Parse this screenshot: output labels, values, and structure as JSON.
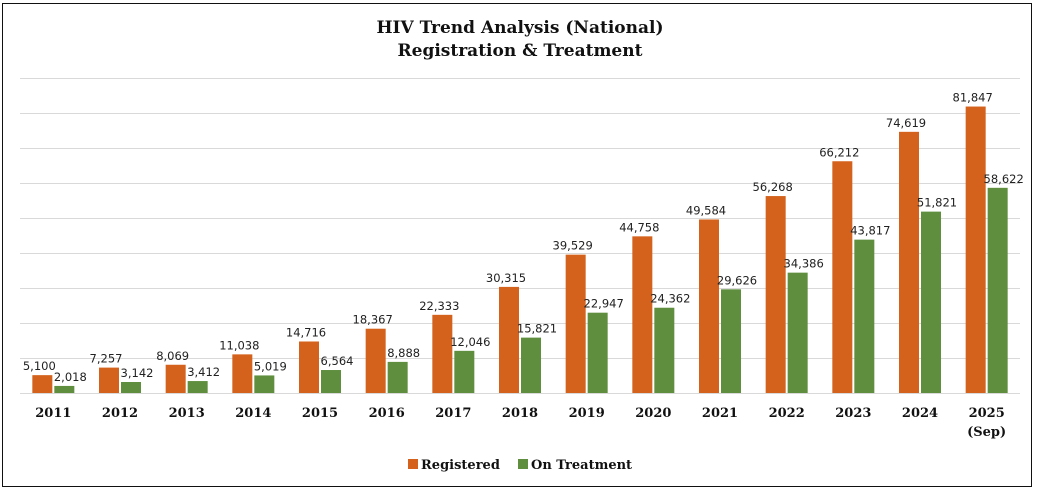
{
  "chart_data": {
    "type": "bar",
    "title": "HIV Trend Analysis (National)",
    "subtitle": "Registration & Treatment",
    "xlabel": "",
    "ylabel": "",
    "ylim": [
      0,
      90000
    ],
    "grid_step": 10000,
    "grid": true,
    "y_axis_labels_shown": false,
    "legend_position": "bottom",
    "categories": [
      "2011",
      "2012",
      "2013",
      "2014",
      "2015",
      "2016",
      "2017",
      "2018",
      "2019",
      "2020",
      "2021",
      "2022",
      "2023",
      "2024",
      "2025"
    ],
    "category_sublabels": [
      "",
      "",
      "",
      "",
      "",
      "",
      "",
      "",
      "",
      "",
      "",
      "",
      "",
      "",
      "(Sep)"
    ],
    "series": [
      {
        "name": "Registered",
        "color": "#D4621C",
        "values": [
          5100,
          7257,
          8069,
          11038,
          14716,
          18367,
          22333,
          30315,
          39529,
          44758,
          49584,
          56268,
          66212,
          74619,
          81847
        ],
        "labels": [
          "5,100",
          "7,257",
          "8,069",
          "11,038",
          "14,716",
          "18,367",
          "22,333",
          "30,315",
          "39,529",
          "44,758",
          "49,584",
          "56,268",
          "66,212",
          "74,619",
          "81,847"
        ]
      },
      {
        "name": "On Treatment",
        "color": "#5E8E3E",
        "values": [
          2018,
          3142,
          3412,
          5019,
          6564,
          8888,
          12046,
          15821,
          22947,
          24362,
          29626,
          34386,
          43817,
          51821,
          58622
        ],
        "labels": [
          "2,018",
          "3,142",
          "3,412",
          "5,019",
          "6,564",
          "8,888",
          "12,046",
          "15,821",
          "22,947",
          "24,362",
          "29,626",
          "34,386",
          "43,817",
          "51,821",
          "58,622"
        ]
      }
    ],
    "colors": {
      "gridline": "#D9D9D9",
      "baseline": "#D9D9D9"
    }
  }
}
